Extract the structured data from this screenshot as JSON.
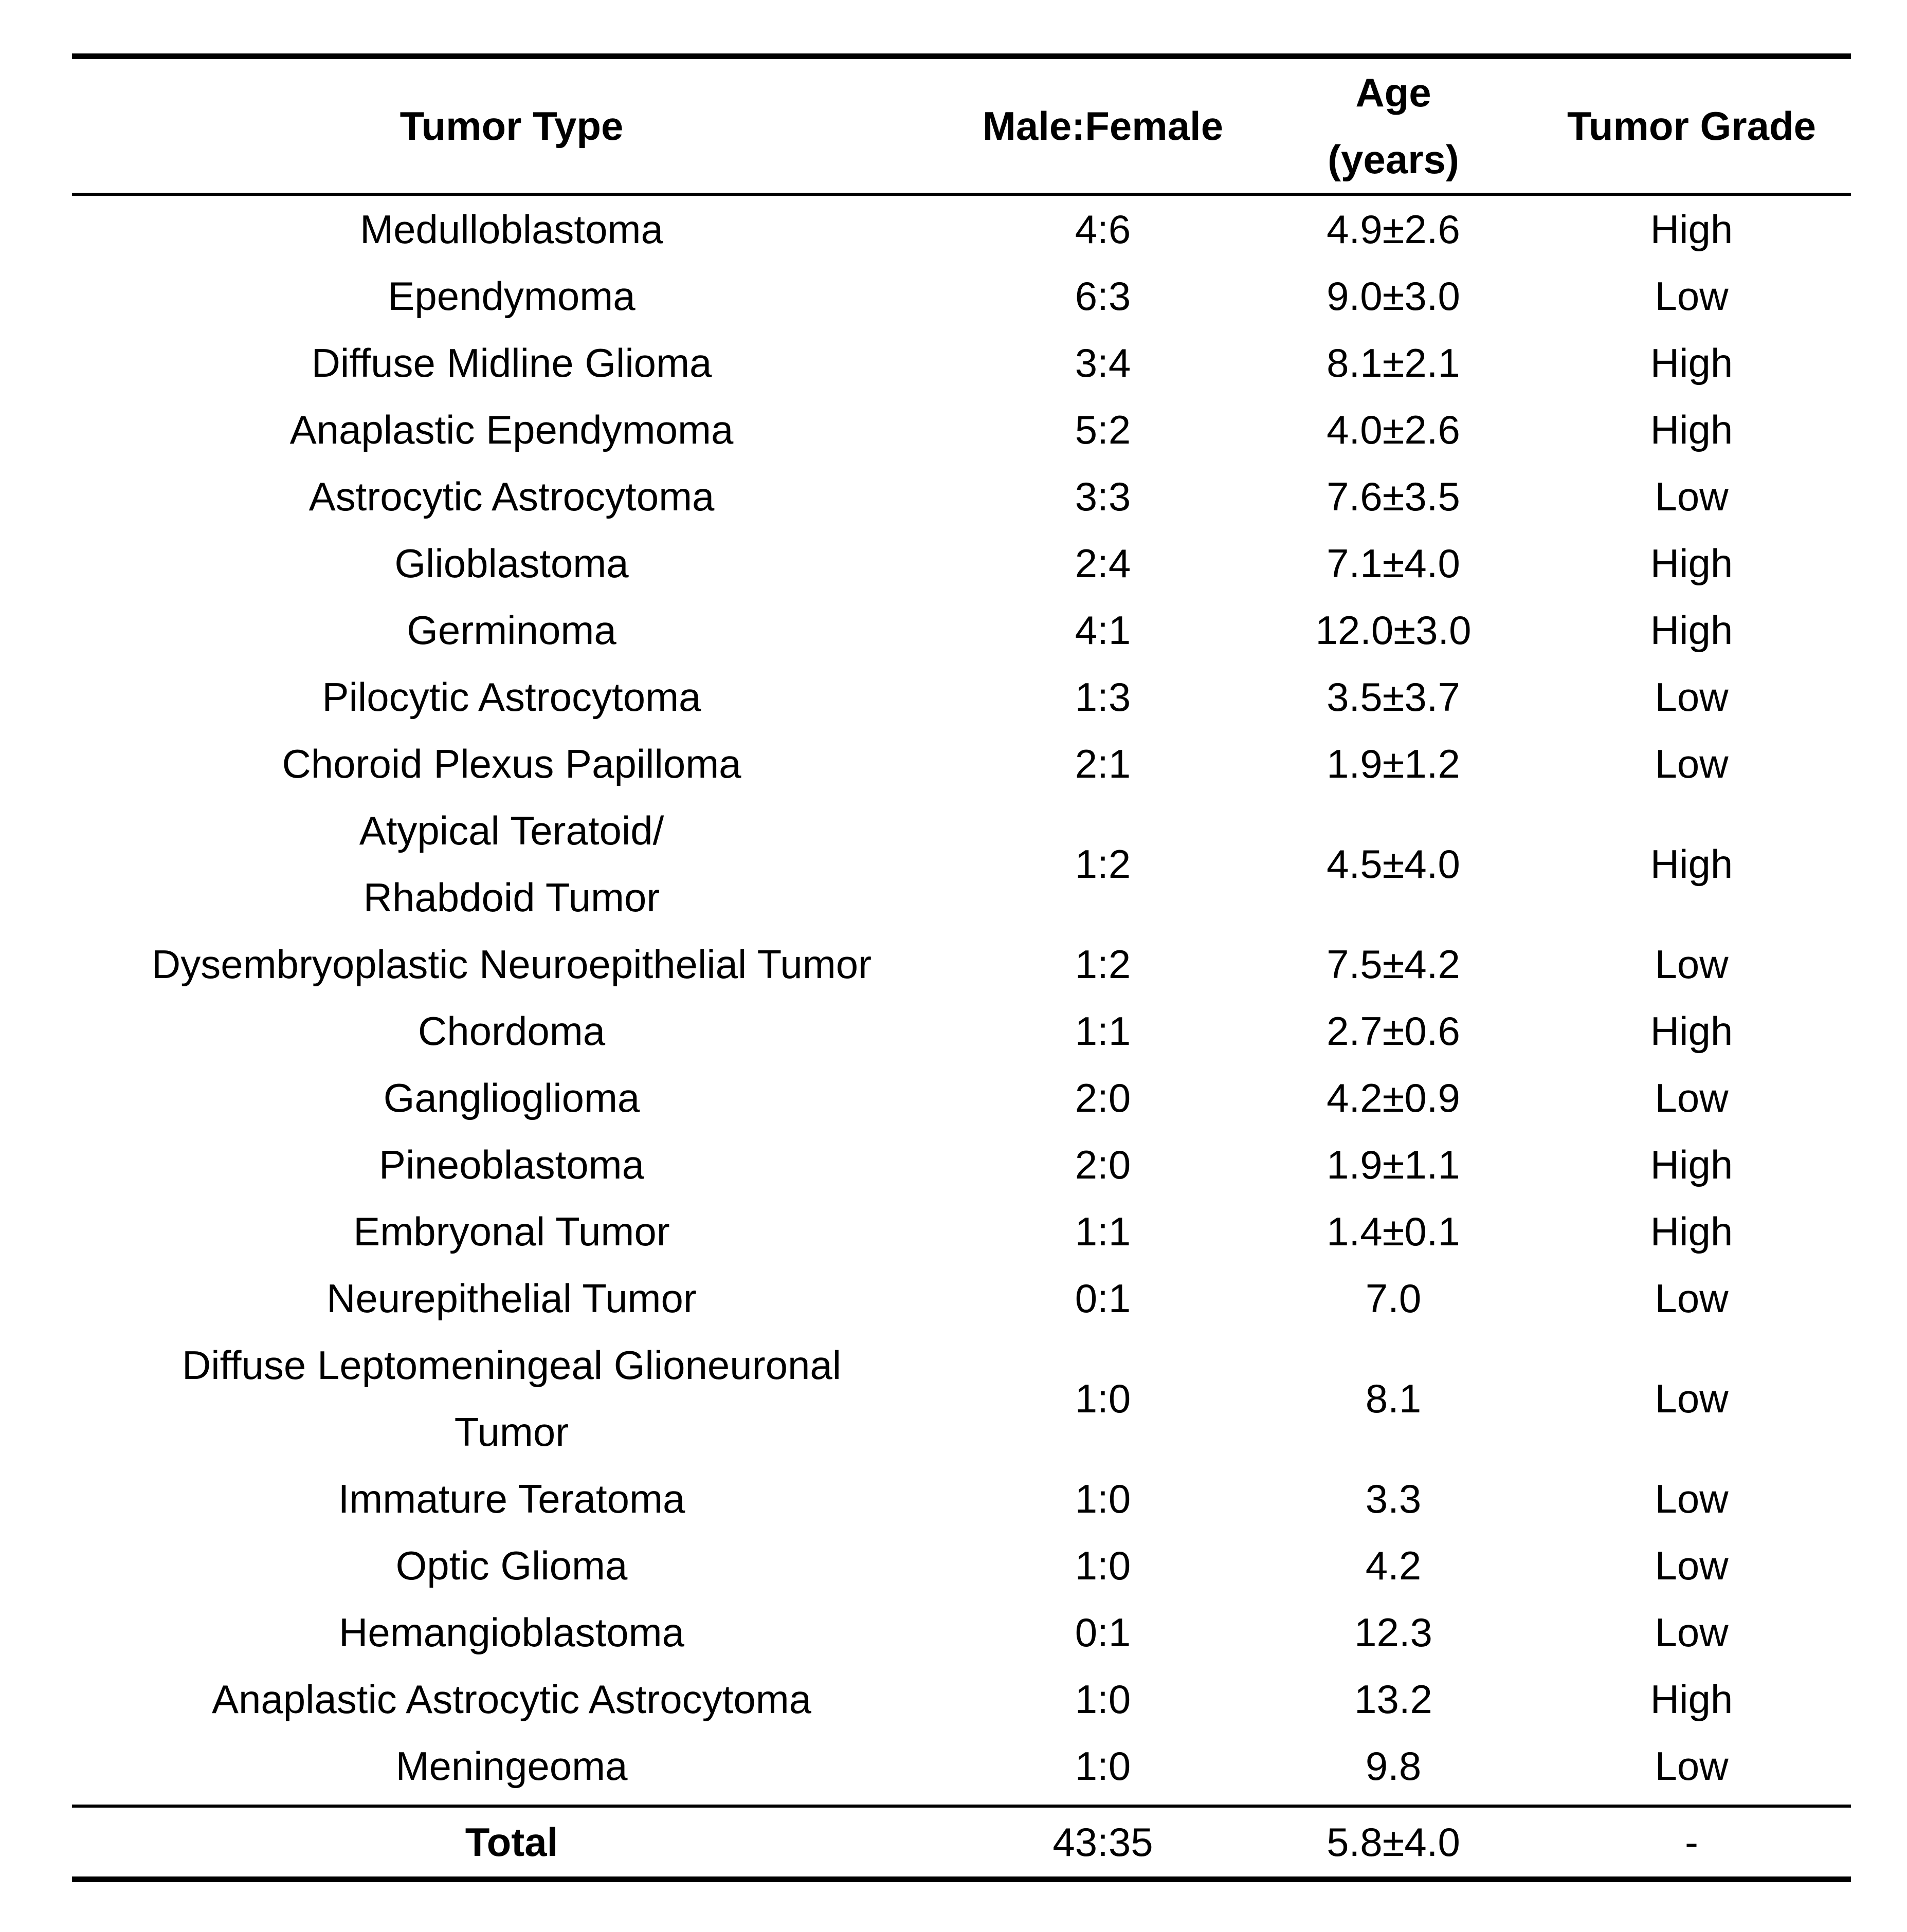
{
  "table": {
    "headers": {
      "tumor_type": "Tumor Type",
      "male_female": "Male:Female",
      "age_line1": "Age",
      "age_line2": "(years)",
      "tumor_grade": "Tumor Grade"
    },
    "rows": [
      {
        "type": "Medulloblastoma",
        "type_line2": "",
        "ratio": "4:6",
        "age": "4.9±2.6",
        "grade": "High"
      },
      {
        "type": "Ependymoma",
        "type_line2": "",
        "ratio": "6:3",
        "age": "9.0±3.0",
        "grade": "Low"
      },
      {
        "type": "Diffuse Midline Glioma",
        "type_line2": "",
        "ratio": "3:4",
        "age": "8.1±2.1",
        "grade": "High"
      },
      {
        "type": "Anaplastic Ependymoma",
        "type_line2": "",
        "ratio": "5:2",
        "age": "4.0±2.6",
        "grade": "High"
      },
      {
        "type": "Astrocytic Astrocytoma",
        "type_line2": "",
        "ratio": "3:3",
        "age": "7.6±3.5",
        "grade": "Low"
      },
      {
        "type": "Glioblastoma",
        "type_line2": "",
        "ratio": "2:4",
        "age": "7.1±4.0",
        "grade": "High"
      },
      {
        "type": "Germinoma",
        "type_line2": "",
        "ratio": "4:1",
        "age": "12.0±3.0",
        "grade": "High"
      },
      {
        "type": "Pilocytic Astrocytoma",
        "type_line2": "",
        "ratio": "1:3",
        "age": "3.5±3.7",
        "grade": "Low"
      },
      {
        "type": "Choroid Plexus Papilloma",
        "type_line2": "",
        "ratio": "2:1",
        "age": "1.9±1.2",
        "grade": "Low"
      },
      {
        "type": "Atypical Teratoid/",
        "type_line2": "Rhabdoid Tumor",
        "ratio": "1:2",
        "age": "4.5±4.0",
        "grade": "High"
      },
      {
        "type": "Dysembryoplastic Neuroepithelial Tumor",
        "type_line2": "",
        "ratio": "1:2",
        "age": "7.5±4.2",
        "grade": "Low"
      },
      {
        "type": "Chordoma",
        "type_line2": "",
        "ratio": "1:1",
        "age": "2.7±0.6",
        "grade": "High"
      },
      {
        "type": "Ganglioglioma",
        "type_line2": "",
        "ratio": "2:0",
        "age": "4.2±0.9",
        "grade": "Low"
      },
      {
        "type": "Pineoblastoma",
        "type_line2": "",
        "ratio": "2:0",
        "age": "1.9±1.1",
        "grade": "High"
      },
      {
        "type": "Embryonal Tumor",
        "type_line2": "",
        "ratio": "1:1",
        "age": "1.4±0.1",
        "grade": "High"
      },
      {
        "type": "Neurepithelial Tumor",
        "type_line2": "",
        "ratio": "0:1",
        "age": "7.0",
        "grade": "Low"
      },
      {
        "type": "Diffuse Leptomeningeal Glioneuronal",
        "type_line2": "Tumor",
        "ratio": "1:0",
        "age": "8.1",
        "grade": "Low"
      },
      {
        "type": "Immature Teratoma",
        "type_line2": "",
        "ratio": "1:0",
        "age": "3.3",
        "grade": "Low"
      },
      {
        "type": "Optic Glioma",
        "type_line2": "",
        "ratio": "1:0",
        "age": "4.2",
        "grade": "Low"
      },
      {
        "type": "Hemangioblastoma",
        "type_line2": "",
        "ratio": "0:1",
        "age": "12.3",
        "grade": "Low"
      },
      {
        "type": "Anaplastic Astrocytic Astrocytoma",
        "type_line2": "",
        "ratio": "1:0",
        "age": "13.2",
        "grade": "High"
      },
      {
        "type": "Meningeoma",
        "type_line2": "",
        "ratio": "1:0",
        "age": "9.8",
        "grade": "Low"
      }
    ],
    "total": {
      "label": "Total",
      "ratio": "43:35",
      "age": "5.8±4.0",
      "grade": "-"
    }
  }
}
